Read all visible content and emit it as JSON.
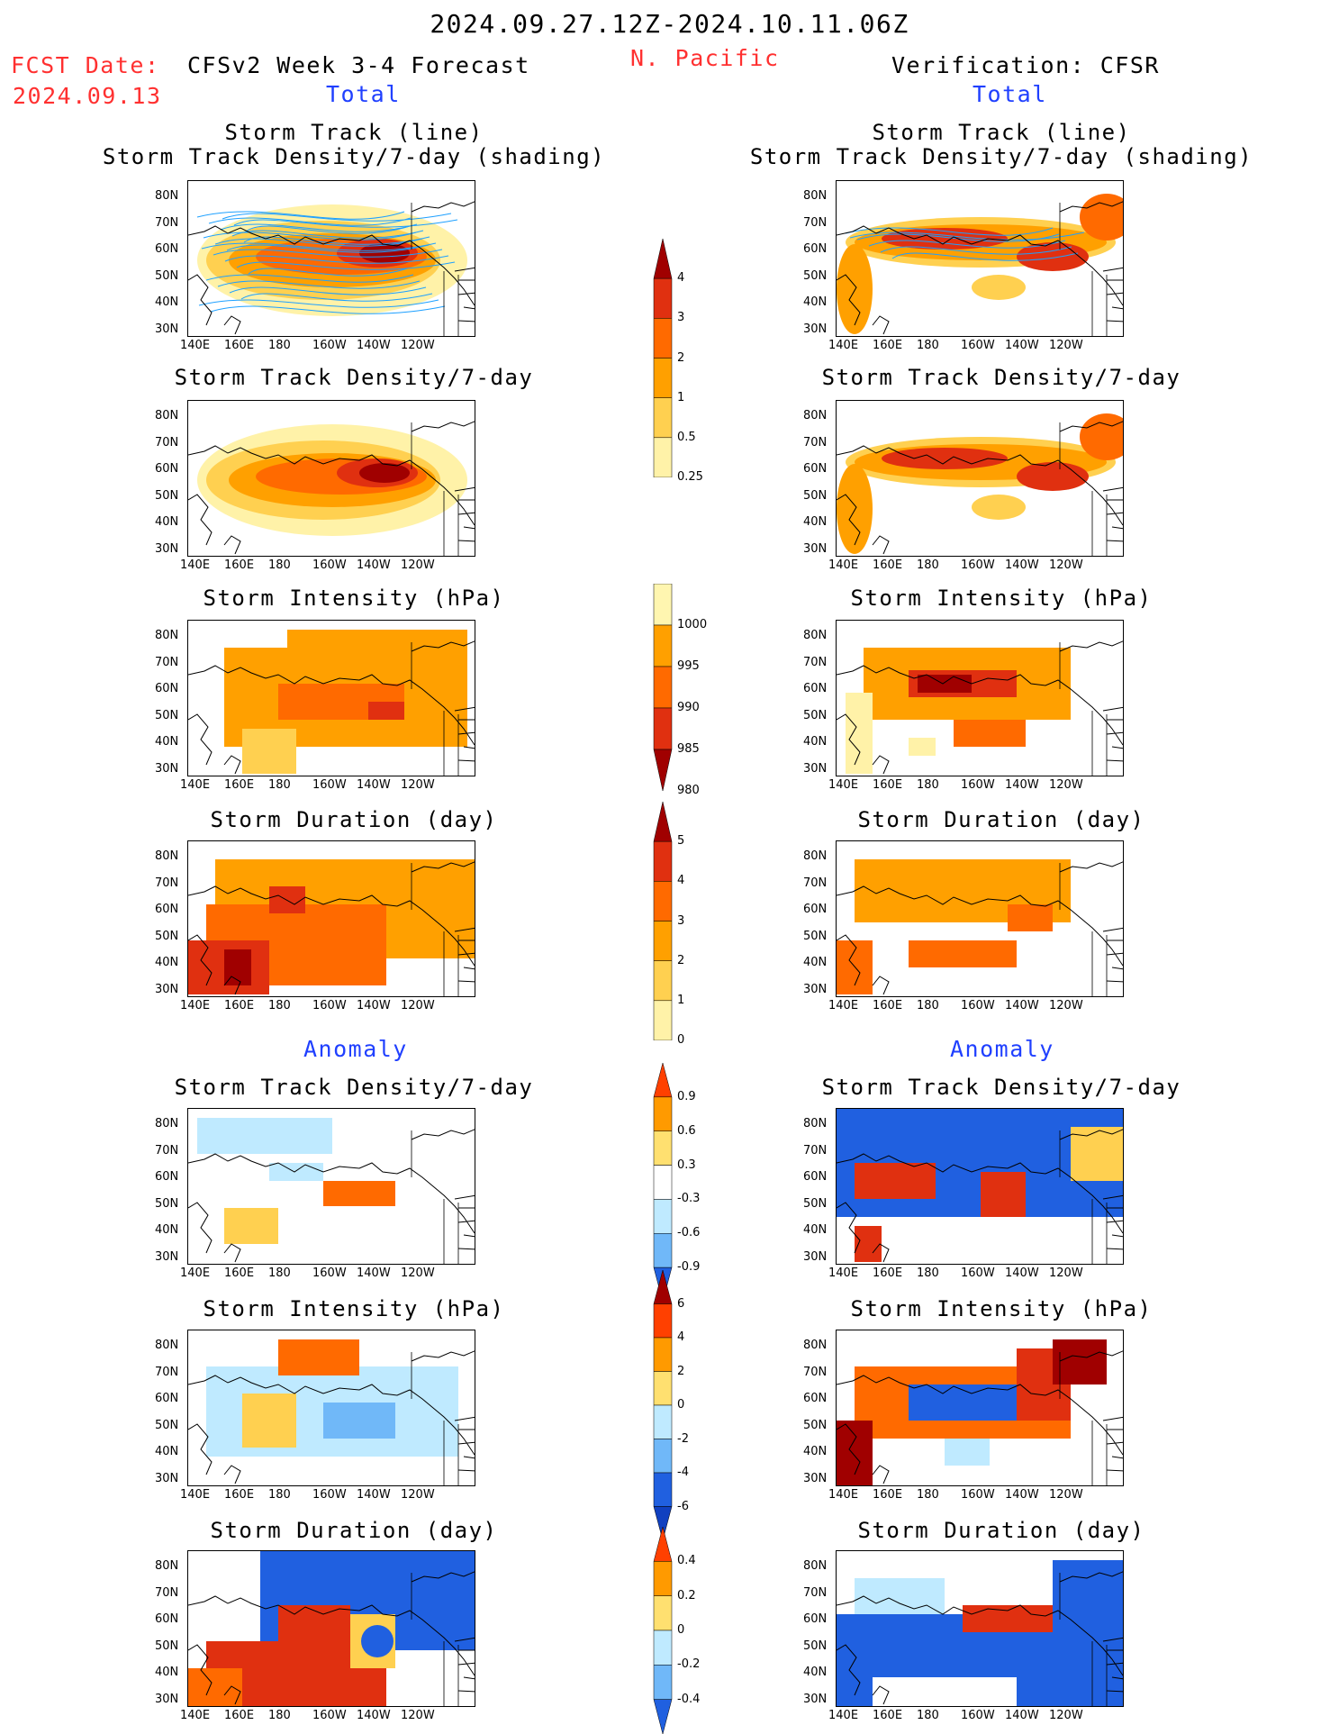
{
  "header": {
    "date_range": "2024.09.27.12Z-2024.10.11.06Z",
    "fcst_label": "FCST Date:",
    "fcst_date": "2024.09.13",
    "model": "CFSv2 Week 3-4 Forecast",
    "region": "N. Pacific",
    "verification": "Verification: CFSR"
  },
  "sections": {
    "total": "Total",
    "anomaly": "Anomaly"
  },
  "axes": {
    "lat_ticks": [
      "80N",
      "70N",
      "60N",
      "50N",
      "40N",
      "30N"
    ],
    "lon_ticks": [
      "140E",
      "160E",
      "180",
      "160W",
      "140W",
      "120W"
    ]
  },
  "panel_titles": {
    "track_line": "Storm Track (line)",
    "track_shading": "Storm Track Density/7-day (shading)",
    "density": "Storm Track Density/7-day",
    "intensity": "Storm Intensity (hPa)",
    "duration": "Storm Duration (day)"
  },
  "colorbars": {
    "density_total": {
      "labels": [
        "4",
        "3",
        "2",
        "1",
        "0.5",
        "0.25"
      ],
      "colors": [
        "#a00000",
        "#e03010",
        "#ff6a00",
        "#ffa000",
        "#ffd050",
        "#fff2a8"
      ]
    },
    "intensity_total": {
      "labels": [
        "1000",
        "995",
        "990",
        "985",
        "980"
      ],
      "colors": [
        "#fff6b0",
        "#ffa000",
        "#ff6a00",
        "#e03010",
        "#a00000"
      ]
    },
    "duration_total": {
      "labels": [
        "5",
        "4",
        "3",
        "2",
        "1",
        "0"
      ],
      "colors": [
        "#a00000",
        "#e03010",
        "#ff6a00",
        "#ffa000",
        "#ffd050",
        "#fff2a8"
      ]
    },
    "density_anom": {
      "labels": [
        "0.9",
        "0.6",
        "0.3",
        "-0.3",
        "-0.6",
        "-0.9"
      ],
      "colors": [
        "#ff4000",
        "#ff9a00",
        "#ffe070",
        "#ffffff",
        "#bfeaff",
        "#70b8f8",
        "#2060e0"
      ]
    },
    "intensity_anom": {
      "labels": [
        "6",
        "4",
        "2",
        "0",
        "-2",
        "-4",
        "-6"
      ],
      "colors": [
        "#a00000",
        "#ff4000",
        "#ff9a00",
        "#ffe070",
        "#bfeaff",
        "#70b8f8",
        "#2060e0",
        "#1040c0"
      ]
    },
    "duration_anom": {
      "labels": [
        "0.4",
        "0.2",
        "0",
        "-0.2",
        "-0.4"
      ],
      "colors": [
        "#ff4000",
        "#ff9a00",
        "#ffe070",
        "#bfeaff",
        "#70b8f8",
        "#2060e0"
      ]
    }
  },
  "palette": {
    "land_outline": "#000000",
    "track_line": "#1ea0ff",
    "dark_red": "#a00000",
    "red": "#e03010",
    "orange": "#ff6a00",
    "light_orange": "#ffa000",
    "yellow": "#ffd050",
    "pale_yellow": "#fff2a8",
    "anom_blue": "#2060e0",
    "anom_light_blue": "#bfeaff"
  }
}
